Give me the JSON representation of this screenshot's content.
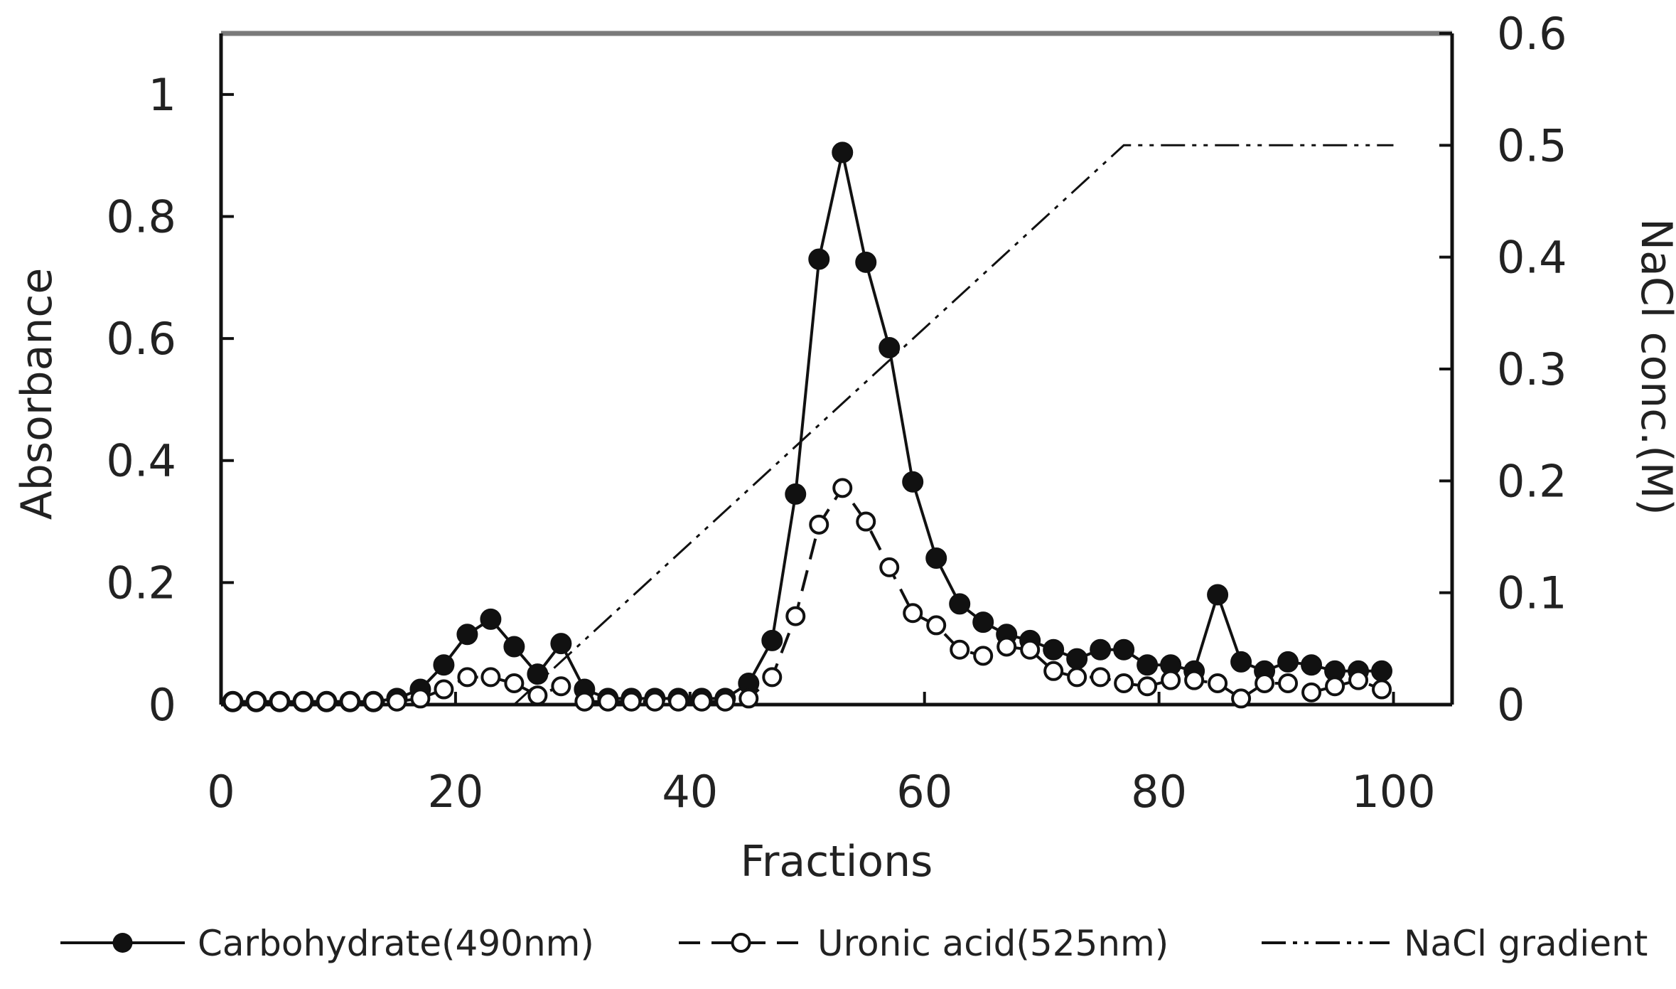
{
  "chart_data": {
    "type": "line",
    "xlabel": "Fractions",
    "ylabel": "Absorbance",
    "y2label": "NaCl conc.(M)",
    "xlim": [
      0,
      105
    ],
    "ylim": [
      0,
      1.1
    ],
    "y2lim": [
      0,
      0.6
    ],
    "x_ticks": [
      "0",
      "20",
      "40",
      "60",
      "80",
      "100"
    ],
    "y_ticks": [
      "0",
      "0.2",
      "0.4",
      "0.6",
      "0.8",
      "1"
    ],
    "y2_ticks": [
      "0",
      "0.1",
      "0.2",
      "0.3",
      "0.4",
      "0.5",
      "0.6"
    ],
    "grid": false,
    "legend_position": "bottom",
    "series": [
      {
        "name": "Carbohydrate(490nm)",
        "axis": "left",
        "marker": "filled-circle",
        "line": "solid",
        "x": [
          1,
          3,
          5,
          7,
          9,
          11,
          13,
          15,
          17,
          19,
          21,
          23,
          25,
          27,
          29,
          31,
          33,
          35,
          37,
          39,
          41,
          43,
          45,
          47,
          49,
          51,
          53,
          55,
          57,
          59,
          61,
          63,
          65,
          67,
          69,
          71,
          73,
          75,
          77,
          79,
          81,
          83,
          85,
          87,
          89,
          91,
          93,
          95,
          97,
          99
        ],
        "y": [
          0.005,
          0.005,
          0.005,
          0.005,
          0.005,
          0.005,
          0.005,
          0.01,
          0.025,
          0.065,
          0.115,
          0.14,
          0.095,
          0.05,
          0.1,
          0.025,
          0.01,
          0.01,
          0.01,
          0.01,
          0.01,
          0.01,
          0.035,
          0.105,
          0.345,
          0.73,
          0.905,
          0.725,
          0.585,
          0.365,
          0.24,
          0.165,
          0.135,
          0.115,
          0.105,
          0.09,
          0.075,
          0.09,
          0.09,
          0.065,
          0.065,
          0.055,
          0.18,
          0.07,
          0.055,
          0.07,
          0.065,
          0.055,
          0.055,
          0.055
        ]
      },
      {
        "name": "Uronic acid(525nm)",
        "axis": "left",
        "marker": "open-circle",
        "line": "dashed",
        "x": [
          1,
          3,
          5,
          7,
          9,
          11,
          13,
          15,
          17,
          19,
          21,
          23,
          25,
          27,
          29,
          31,
          33,
          35,
          37,
          39,
          41,
          43,
          45,
          47,
          49,
          51,
          53,
          55,
          57,
          59,
          61,
          63,
          65,
          67,
          69,
          71,
          73,
          75,
          77,
          79,
          81,
          83,
          85,
          87,
          89,
          91,
          93,
          95,
          97,
          99
        ],
        "y": [
          0.005,
          0.005,
          0.005,
          0.005,
          0.005,
          0.005,
          0.005,
          0.005,
          0.01,
          0.025,
          0.045,
          0.045,
          0.035,
          0.015,
          0.03,
          0.005,
          0.005,
          0.005,
          0.005,
          0.005,
          0.005,
          0.005,
          0.01,
          0.045,
          0.145,
          0.295,
          0.355,
          0.3,
          0.225,
          0.15,
          0.13,
          0.09,
          0.08,
          0.095,
          0.09,
          0.055,
          0.045,
          0.045,
          0.035,
          0.03,
          0.04,
          0.04,
          0.035,
          0.01,
          0.035,
          0.035,
          0.02,
          0.03,
          0.04,
          0.025
        ]
      },
      {
        "name": "NaCl gradient",
        "axis": "right",
        "marker": "none",
        "line": "dash-dot-dot",
        "x": [
          25,
          77,
          100
        ],
        "y": [
          0,
          0.5,
          0.5
        ]
      }
    ]
  }
}
